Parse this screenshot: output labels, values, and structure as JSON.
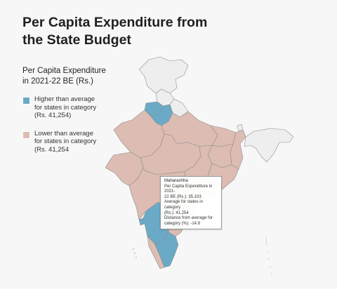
{
  "title_line1": "Per Capita Expenditure from",
  "title_line2": "the State Budget",
  "legend": {
    "title_line1": "Per Capita Expenditure",
    "title_line2": "in 2021-22 BE (Rs.)",
    "items": [
      {
        "label_line1": "Higher than average",
        "label_line2": "for states in category",
        "label_line3": "(Rs. 41,254)",
        "color": "#6aaac6"
      },
      {
        "label_line1": "Lower than average",
        "label_line2": "for states in category",
        "label_line3": "(Rs. 41,254",
        "color": "#dcbcb3"
      }
    ]
  },
  "no_data_color": "#eeeeee",
  "tooltip": {
    "state": "Maharashtra",
    "line1": "Per Capita Expenditure in 2021-",
    "line2": "22 BE (Rs.): 35,103",
    "line3": "Average for states in category",
    "line4": "(Rs.): 41,254",
    "line5": "Distance from average for",
    "line6": "category (%): -14.9"
  }
}
